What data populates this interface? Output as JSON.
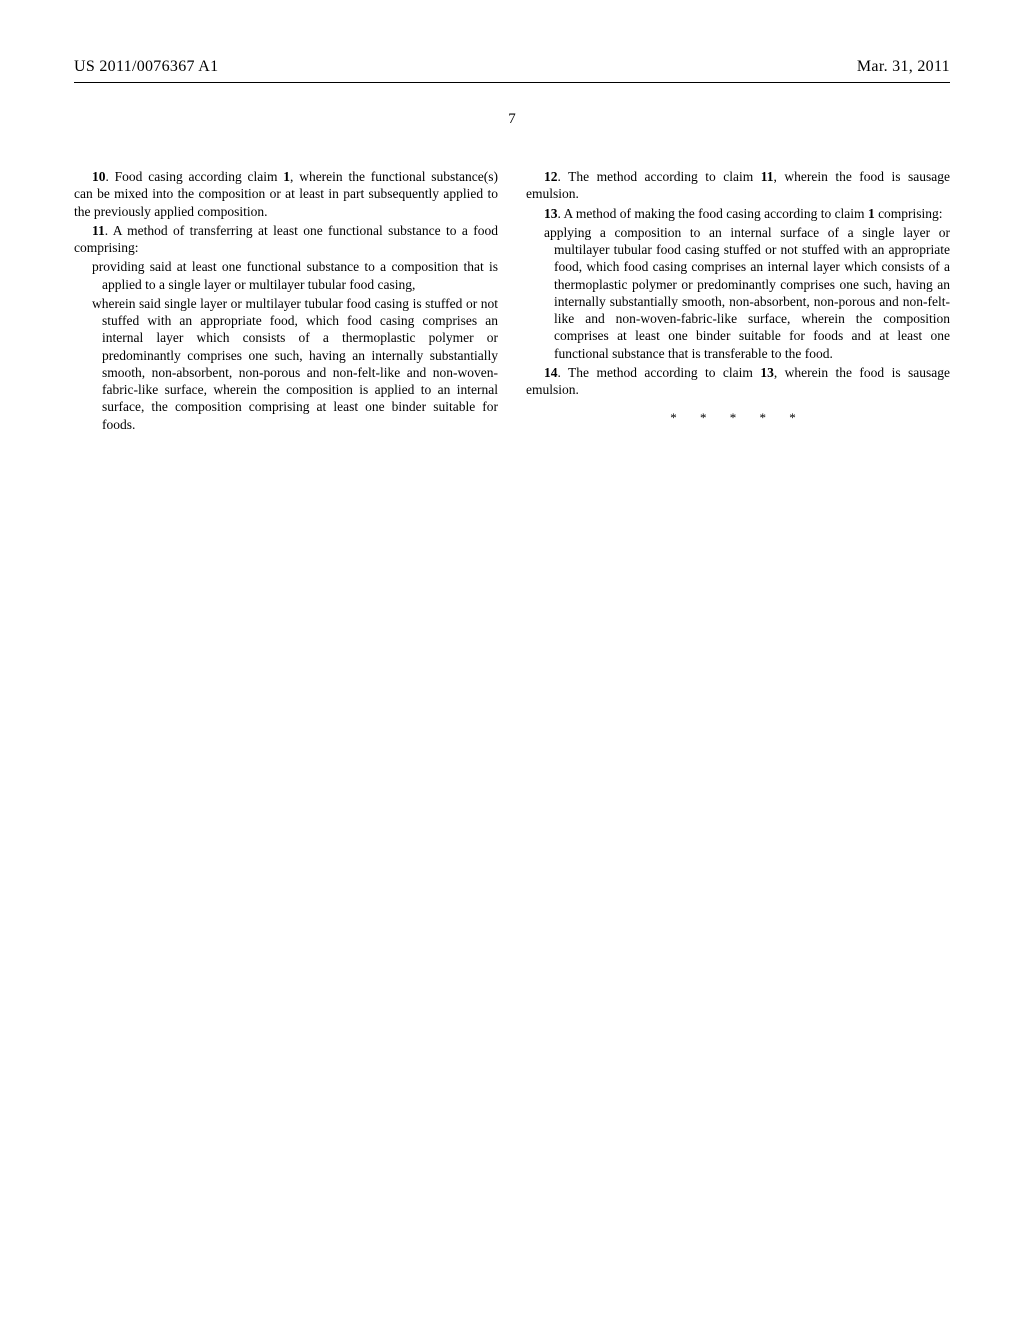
{
  "header": {
    "pubNumber": "US 2011/0076367 A1",
    "pubDate": "Mar. 31, 2011"
  },
  "pageNumber": "7",
  "leftColumn": {
    "claim10": {
      "num": "10",
      "text": ". Food casing according claim ",
      "ref": "1",
      "tail": ", wherein the functional substance(s) can be mixed into the composition or at least in part subsequently applied to the previously applied composition."
    },
    "claim11": {
      "num": "11",
      "text": ". A method of transferring at least one functional substance to a food comprising:",
      "sub1": "providing said at least one functional substance to a composition that is applied to a single layer or multilayer tubular food casing,",
      "sub2": "wherein said single layer or multilayer tubular food casing is stuffed or not stuffed with an appropriate food, which food casing comprises an internal layer which consists of a thermoplastic polymer or predominantly comprises one such, having an internally substantially smooth, non-absorbent, non-porous and non-felt-like and non-woven-fabric-like surface, wherein the composition is applied to an internal surface, the composition comprising at least one binder suitable for foods."
    }
  },
  "rightColumn": {
    "claim12": {
      "num": "12",
      "text": ". The method according to claim ",
      "ref": "11",
      "tail": ", wherein the food is sausage emulsion."
    },
    "claim13": {
      "num": "13",
      "text": ". A method of making the food casing according to claim ",
      "ref": "1",
      "tail": " comprising:",
      "sub1": "applying a composition to an internal surface of a single layer or multilayer tubular food casing stuffed or not stuffed with an appropriate food, which food casing comprises an internal layer which consists of a thermoplastic polymer or predominantly comprises one such, having an internally substantially smooth, non-absorbent, non-porous and non-felt-like and non-woven-fabric-like surface, wherein the composition comprises at least one binder suitable for foods and at least one functional substance that is transferable to the food."
    },
    "claim14": {
      "num": "14",
      "text": ". The method according to claim ",
      "ref": "13",
      "tail": ", wherein the food is sausage emulsion."
    }
  },
  "endMarks": "*  *  *  *  *",
  "styles": {
    "backgroundColor": "#ffffff",
    "textColor": "#000000",
    "fontFamily": "Times New Roman",
    "bodyFontSize": 13.5,
    "headerFontSize": 16,
    "pageNumFontSize": 15,
    "lineHeight": 1.28,
    "pageWidth": 1024,
    "pageHeight": 1320,
    "columnGap": 28
  }
}
